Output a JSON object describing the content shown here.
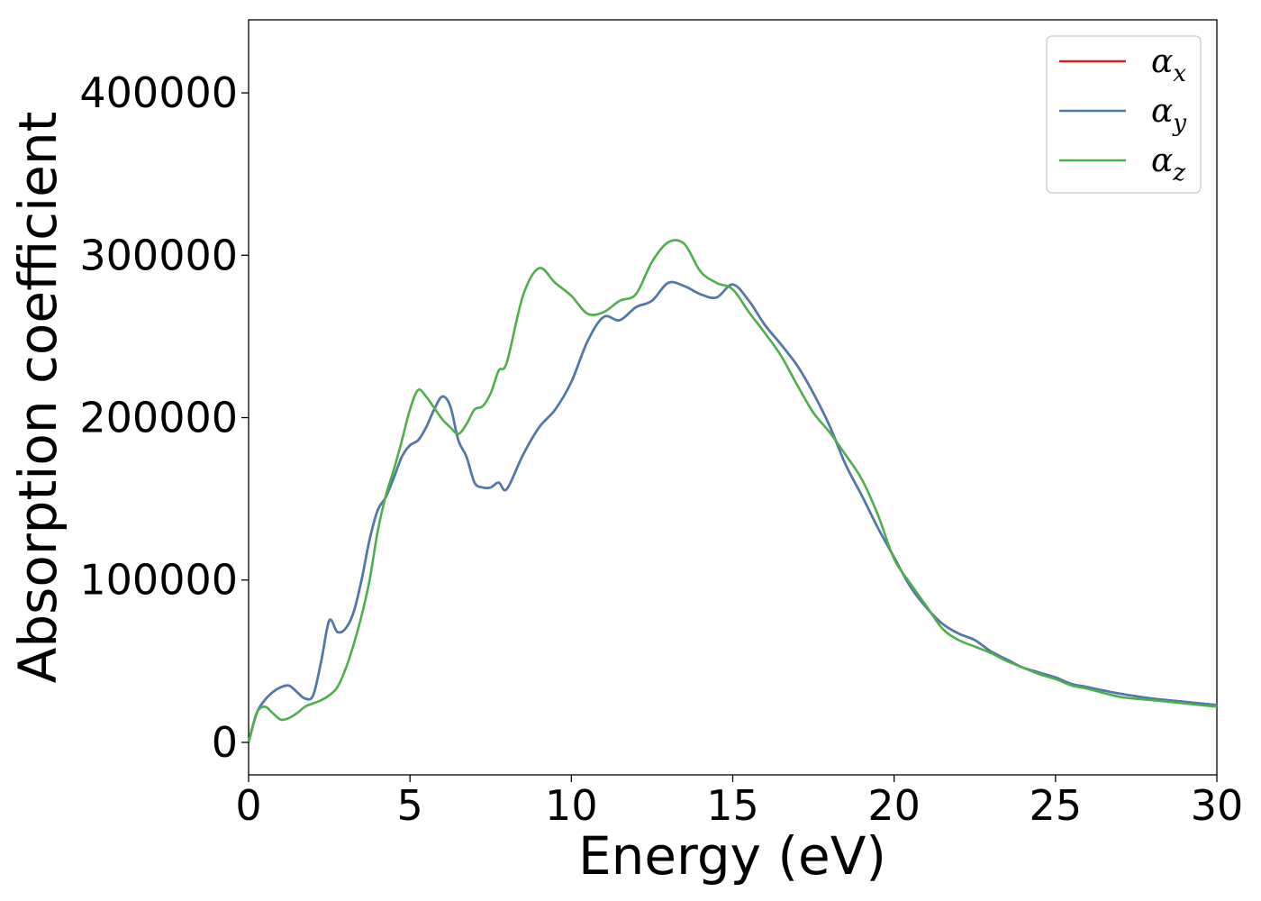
{
  "chart_data": {
    "type": "line",
    "title": "",
    "xlabel": "Energy (eV)",
    "ylabel": "Absorption coefficient",
    "xlim": [
      0,
      30
    ],
    "ylim": [
      -20000,
      445000
    ],
    "xticks": [
      0,
      5,
      10,
      15,
      20,
      25,
      30
    ],
    "yticks": [
      0,
      100000,
      200000,
      300000,
      400000
    ],
    "grid": false,
    "legend_position": "top-right",
    "series": [
      {
        "name": "α",
        "subscript": "x",
        "color": "#e41a1c",
        "x": [
          0,
          0.25,
          0.5,
          0.75,
          1,
          1.25,
          1.5,
          1.75,
          2,
          2.25,
          2.5,
          2.75,
          3,
          3.25,
          3.5,
          3.75,
          4,
          4.25,
          4.5,
          4.75,
          5,
          5.25,
          5.5,
          5.75,
          6,
          6.25,
          6.5,
          6.75,
          7,
          7.25,
          7.5,
          7.75,
          8,
          8.5,
          9,
          9.5,
          10,
          10.5,
          11,
          11.5,
          12,
          12.5,
          13,
          13.5,
          14,
          14.5,
          15,
          15.5,
          16,
          16.5,
          17,
          17.5,
          18,
          18.5,
          19,
          19.5,
          20,
          20.5,
          21,
          21.5,
          22,
          22.5,
          23,
          23.5,
          24,
          24.5,
          25,
          25.5,
          26,
          27,
          28,
          29,
          30
        ],
        "values": [
          0,
          18000,
          26000,
          31000,
          34000,
          35000,
          31000,
          27000,
          29000,
          50000,
          75000,
          68000,
          70000,
          80000,
          100000,
          125000,
          143000,
          151000,
          163000,
          176000,
          183000,
          186000,
          194000,
          205000,
          213000,
          207000,
          186000,
          176000,
          160000,
          157000,
          157000,
          160000,
          156000,
          177000,
          194000,
          205000,
          222000,
          247000,
          262000,
          260000,
          268000,
          272000,
          283000,
          281000,
          276000,
          274000,
          282000,
          272000,
          257000,
          245000,
          232000,
          215000,
          195000,
          171000,
          152000,
          132000,
          114000,
          96000,
          83000,
          73000,
          67000,
          63000,
          56000,
          51000,
          46000,
          43000,
          40000,
          36000,
          34000,
          30000,
          27000,
          25000,
          23000
        ]
      },
      {
        "name": "α",
        "subscript": "y",
        "color": "#4a7cb2",
        "x": [
          0,
          0.25,
          0.5,
          0.75,
          1,
          1.25,
          1.5,
          1.75,
          2,
          2.25,
          2.5,
          2.75,
          3,
          3.25,
          3.5,
          3.75,
          4,
          4.25,
          4.5,
          4.75,
          5,
          5.25,
          5.5,
          5.75,
          6,
          6.25,
          6.5,
          6.75,
          7,
          7.25,
          7.5,
          7.75,
          8,
          8.5,
          9,
          9.5,
          10,
          10.5,
          11,
          11.5,
          12,
          12.5,
          13,
          13.5,
          14,
          14.5,
          15,
          15.5,
          16,
          16.5,
          17,
          17.5,
          18,
          18.5,
          19,
          19.5,
          20,
          20.5,
          21,
          21.5,
          22,
          22.5,
          23,
          23.5,
          24,
          24.5,
          25,
          25.5,
          26,
          27,
          28,
          29,
          30
        ],
        "values": [
          0,
          18000,
          26000,
          31000,
          34000,
          35000,
          31000,
          27000,
          29000,
          50000,
          75000,
          68000,
          70000,
          80000,
          100000,
          125000,
          143000,
          151000,
          163000,
          176000,
          183000,
          186000,
          194000,
          205000,
          213000,
          207000,
          186000,
          176000,
          160000,
          157000,
          157000,
          160000,
          156000,
          177000,
          194000,
          205000,
          222000,
          247000,
          262000,
          260000,
          268000,
          272000,
          283000,
          281000,
          276000,
          274000,
          282000,
          272000,
          257000,
          245000,
          232000,
          215000,
          195000,
          171000,
          152000,
          132000,
          114000,
          96000,
          83000,
          73000,
          67000,
          63000,
          56000,
          51000,
          46000,
          43000,
          40000,
          36000,
          34000,
          30000,
          27000,
          25000,
          23000
        ]
      },
      {
        "name": "α",
        "subscript": "z",
        "color": "#4daf4a",
        "x": [
          0,
          0.25,
          0.5,
          0.75,
          1,
          1.25,
          1.5,
          1.75,
          2,
          2.25,
          2.5,
          2.75,
          3,
          3.25,
          3.5,
          3.75,
          4,
          4.25,
          4.5,
          4.75,
          5,
          5.25,
          5.5,
          5.75,
          6,
          6.25,
          6.5,
          6.75,
          7,
          7.25,
          7.5,
          7.75,
          8,
          8.5,
          9,
          9.5,
          10,
          10.5,
          11,
          11.5,
          12,
          12.5,
          13,
          13.5,
          14,
          14.5,
          15,
          15.5,
          16,
          16.5,
          17,
          17.5,
          18,
          18.5,
          19,
          19.5,
          20,
          20.5,
          21,
          21.5,
          22,
          22.5,
          23,
          23.5,
          24,
          24.5,
          25,
          25.5,
          26,
          27,
          28,
          29,
          30
        ],
        "values": [
          0,
          18000,
          22000,
          18000,
          14000,
          15000,
          18000,
          22000,
          24000,
          26000,
          29000,
          34000,
          45000,
          60000,
          78000,
          100000,
          130000,
          152000,
          168000,
          186000,
          205000,
          217000,
          213000,
          206000,
          199000,
          194000,
          190000,
          196000,
          205000,
          207000,
          215000,
          229000,
          234000,
          275000,
          292000,
          283000,
          275000,
          264000,
          265000,
          272000,
          276000,
          296000,
          308000,
          307000,
          290000,
          283000,
          279000,
          265000,
          252000,
          238000,
          220000,
          203000,
          191000,
          177000,
          162000,
          140000,
          113000,
          98000,
          84000,
          70000,
          63000,
          59000,
          55000,
          50000,
          46000,
          42000,
          39000,
          35000,
          33000,
          28000,
          26000,
          24000,
          22000
        ]
      }
    ]
  }
}
